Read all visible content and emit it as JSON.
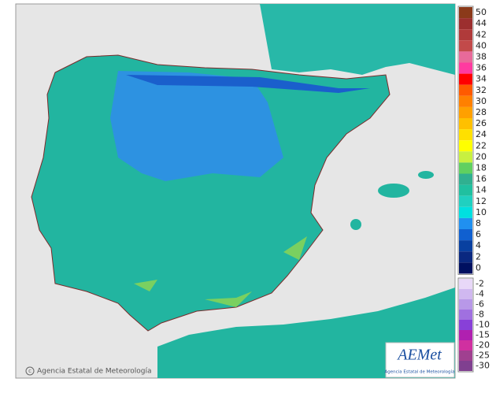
{
  "map": {
    "credit": "Agencia Estatal de Meteorología",
    "logo": {
      "name": "AEMet",
      "subtitle": "Agencia Estatal de Meteorología"
    },
    "legend": {
      "upper": [
        {
          "label": 50,
          "color": "#8b3a1a"
        },
        {
          "label": 44,
          "color": "#9c2f2f"
        },
        {
          "label": 42,
          "color": "#b03a3a"
        },
        {
          "label": 40,
          "color": "#c24a4a"
        },
        {
          "label": 38,
          "color": "#e86a9a"
        },
        {
          "label": 36,
          "color": "#ff3aa0"
        },
        {
          "label": 34,
          "color": "#ff0000"
        },
        {
          "label": 32,
          "color": "#ff5a00"
        },
        {
          "label": 30,
          "color": "#ff8000"
        },
        {
          "label": 28,
          "color": "#ffa000"
        },
        {
          "label": 26,
          "color": "#ffc000"
        },
        {
          "label": 24,
          "color": "#ffe000"
        },
        {
          "label": 22,
          "color": "#ffff00"
        },
        {
          "label": 20,
          "color": "#c8f040"
        },
        {
          "label": 18,
          "color": "#60d060"
        },
        {
          "label": 16,
          "color": "#30b090"
        },
        {
          "label": 14,
          "color": "#20c0a0"
        },
        {
          "label": 12,
          "color": "#20d0c0"
        },
        {
          "label": 10,
          "color": "#00e0e0"
        },
        {
          "label": 8,
          "color": "#2090f0"
        },
        {
          "label": 6,
          "color": "#1060d0"
        },
        {
          "label": 4,
          "color": "#0840a0"
        },
        {
          "label": 2,
          "color": "#0a2880"
        },
        {
          "label": 0,
          "color": "#001060"
        }
      ],
      "lower": [
        {
          "label": -2,
          "color": "#e8d8f8"
        },
        {
          "label": -4,
          "color": "#d0b8f0"
        },
        {
          "label": -6,
          "color": "#b898e8"
        },
        {
          "label": -8,
          "color": "#a070e0"
        },
        {
          "label": -10,
          "color": "#8840d8"
        },
        {
          "label": -15,
          "color": "#b020b0"
        },
        {
          "label": -20,
          "color": "#d030a0"
        },
        {
          "label": -25,
          "color": "#a04090"
        },
        {
          "label": -30,
          "color": "#804090"
        }
      ]
    }
  }
}
